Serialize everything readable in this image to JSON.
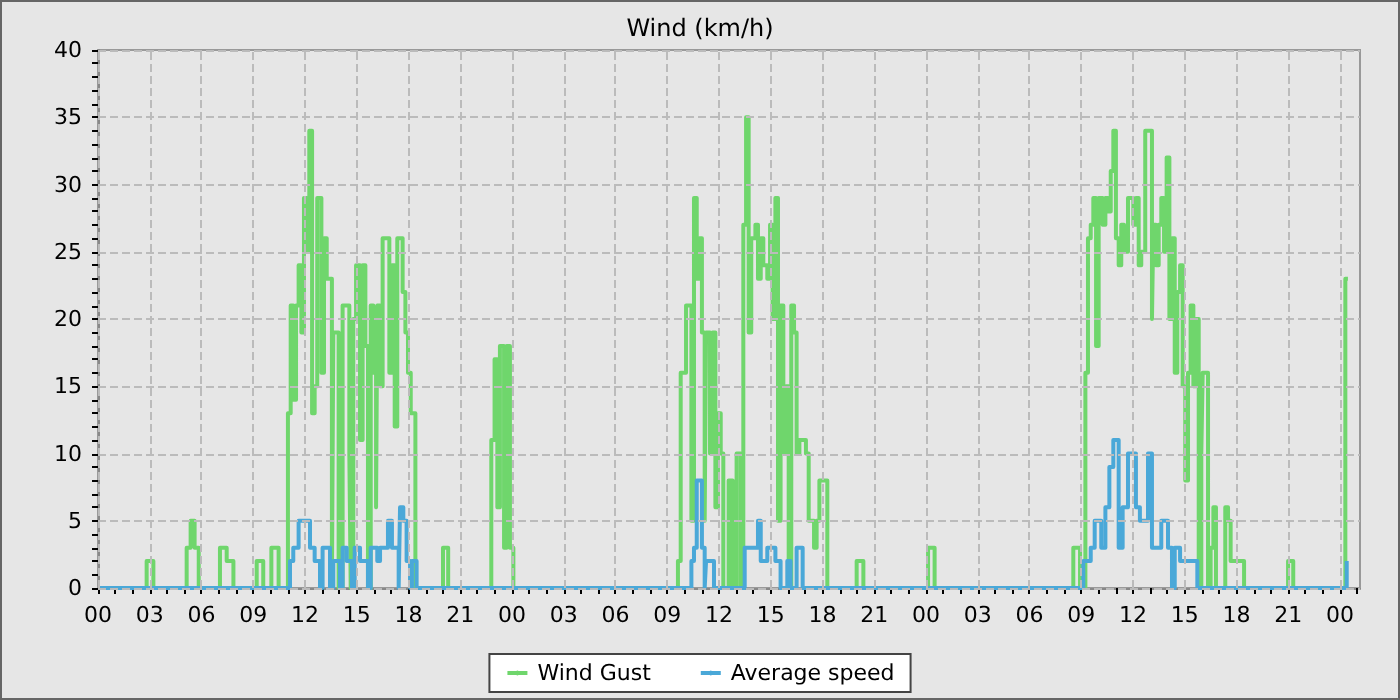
{
  "chart_data": {
    "type": "step",
    "title": "Wind (km/h)",
    "xlim": [
      0,
      73.16
    ],
    "ylim": [
      0,
      40
    ],
    "xticks": [
      {
        "value": 0,
        "label": "00"
      },
      {
        "value": 1,
        "label": null
      },
      {
        "value": 2,
        "label": null
      },
      {
        "value": 3,
        "label": "03"
      },
      {
        "value": 4,
        "label": null
      },
      {
        "value": 5,
        "label": null
      },
      {
        "value": 6,
        "label": "06"
      },
      {
        "value": 7,
        "label": null
      },
      {
        "value": 8,
        "label": null
      },
      {
        "value": 9,
        "label": "09"
      },
      {
        "value": 10,
        "label": null
      },
      {
        "value": 11,
        "label": null
      },
      {
        "value": 12,
        "label": "12"
      },
      {
        "value": 13,
        "label": null
      },
      {
        "value": 14,
        "label": null
      },
      {
        "value": 15,
        "label": "15"
      },
      {
        "value": 16,
        "label": null
      },
      {
        "value": 17,
        "label": null
      },
      {
        "value": 18,
        "label": "18"
      },
      {
        "value": 19,
        "label": null
      },
      {
        "value": 20,
        "label": null
      },
      {
        "value": 21,
        "label": "21"
      },
      {
        "value": 22,
        "label": null
      },
      {
        "value": 23,
        "label": null
      },
      {
        "value": 24,
        "label": "00"
      },
      {
        "value": 25,
        "label": null
      },
      {
        "value": 26,
        "label": null
      },
      {
        "value": 27,
        "label": "03"
      },
      {
        "value": 28,
        "label": null
      },
      {
        "value": 29,
        "label": null
      },
      {
        "value": 30,
        "label": "06"
      },
      {
        "value": 31,
        "label": null
      },
      {
        "value": 32,
        "label": null
      },
      {
        "value": 33,
        "label": "09"
      },
      {
        "value": 34,
        "label": null
      },
      {
        "value": 35,
        "label": null
      },
      {
        "value": 36,
        "label": "12"
      },
      {
        "value": 37,
        "label": null
      },
      {
        "value": 38,
        "label": null
      },
      {
        "value": 39,
        "label": "15"
      },
      {
        "value": 40,
        "label": null
      },
      {
        "value": 41,
        "label": null
      },
      {
        "value": 42,
        "label": "18"
      },
      {
        "value": 43,
        "label": null
      },
      {
        "value": 44,
        "label": null
      },
      {
        "value": 45,
        "label": "21"
      },
      {
        "value": 46,
        "label": null
      },
      {
        "value": 47,
        "label": null
      },
      {
        "value": 48,
        "label": "00"
      },
      {
        "value": 49,
        "label": null
      },
      {
        "value": 50,
        "label": null
      },
      {
        "value": 51,
        "label": "03"
      },
      {
        "value": 52,
        "label": null
      },
      {
        "value": 53,
        "label": null
      },
      {
        "value": 54,
        "label": "06"
      },
      {
        "value": 55,
        "label": null
      },
      {
        "value": 56,
        "label": null
      },
      {
        "value": 57,
        "label": "09"
      },
      {
        "value": 58,
        "label": null
      },
      {
        "value": 59,
        "label": null
      },
      {
        "value": 60,
        "label": "12"
      },
      {
        "value": 61,
        "label": null
      },
      {
        "value": 62,
        "label": null
      },
      {
        "value": 63,
        "label": "15"
      },
      {
        "value": 64,
        "label": null
      },
      {
        "value": 65,
        "label": null
      },
      {
        "value": 66,
        "label": "18"
      },
      {
        "value": 67,
        "label": null
      },
      {
        "value": 68,
        "label": null
      },
      {
        "value": 69,
        "label": "21"
      },
      {
        "value": 70,
        "label": null
      },
      {
        "value": 71,
        "label": null
      },
      {
        "value": 72,
        "label": "00"
      },
      {
        "value": 73,
        "label": null
      }
    ],
    "yticks": [
      0,
      {
        "value": 1,
        "label": null
      },
      {
        "value": 2,
        "label": null
      },
      {
        "value": 3,
        "label": null
      },
      {
        "value": 4,
        "label": null
      },
      5,
      {
        "value": 6,
        "label": null
      },
      {
        "value": 7,
        "label": null
      },
      {
        "value": 8,
        "label": null
      },
      {
        "value": 9,
        "label": null
      },
      10,
      {
        "value": 11,
        "label": null
      },
      {
        "value": 12,
        "label": null
      },
      {
        "value": 13,
        "label": null
      },
      {
        "value": 14,
        "label": null
      },
      15,
      {
        "value": 16,
        "label": null
      },
      {
        "value": 17,
        "label": null
      },
      {
        "value": 18,
        "label": null
      },
      {
        "value": 19,
        "label": null
      },
      20,
      {
        "value": 21,
        "label": null
      },
      {
        "value": 22,
        "label": null
      },
      {
        "value": 23,
        "label": null
      },
      {
        "value": 24,
        "label": null
      },
      25,
      {
        "value": 26,
        "label": null
      },
      {
        "value": 27,
        "label": null
      },
      {
        "value": 28,
        "label": null
      },
      {
        "value": 29,
        "label": null
      },
      30,
      {
        "value": 31,
        "label": null
      },
      {
        "value": 32,
        "label": null
      },
      {
        "value": 33,
        "label": null
      },
      {
        "value": 34,
        "label": null
      },
      35,
      {
        "value": 36,
        "label": null
      },
      {
        "value": 37,
        "label": null
      },
      {
        "value": 38,
        "label": null
      },
      {
        "value": 39,
        "label": null
      },
      40
    ],
    "grid": true,
    "legend": "bottom",
    "line_style": "solid",
    "series": [
      {
        "name": "Wind Gust",
        "color": "#6fd66c",
        "x": [
          0,
          2.82,
          3.21,
          5.14,
          5.37,
          5.6,
          5.84,
          7.07,
          7.46,
          7.85,
          9.2,
          9.58,
          10.05,
          10.47,
          11.01,
          11.17,
          11.32,
          11.48,
          11.63,
          11.79,
          11.94,
          12.1,
          12.25,
          12.41,
          12.56,
          12.71,
          12.95,
          13.1,
          13.26,
          13.41,
          13.56,
          13.64,
          13.95,
          14.18,
          14.57,
          14.65,
          14.8,
          14.96,
          15.19,
          15.34,
          15.5,
          15.65,
          15.81,
          15.96,
          16.12,
          16.19,
          16.35,
          16.5,
          16.89,
          17.04,
          17.2,
          17.35,
          17.66,
          17.82,
          17.97,
          18.13,
          18.4,
          20.0,
          20.3,
          22.8,
          22.99,
          23.15,
          23.3,
          23.54,
          23.69,
          23.88,
          24.08,
          33.62,
          33.78,
          34.09,
          34.4,
          34.55,
          34.71,
          34.86,
          35.01,
          35.17,
          35.25,
          35.48,
          35.63,
          35.79,
          35.94,
          36.1,
          36.25,
          36.56,
          36.79,
          37.02,
          37.26,
          37.41,
          37.57,
          37.72,
          37.87,
          38.11,
          38.26,
          38.42,
          38.57,
          38.8,
          38.96,
          39.11,
          39.27,
          39.42,
          39.57,
          39.73,
          39.88,
          40.04,
          40.19,
          40.35,
          40.5,
          40.66,
          41.04,
          41.2,
          41.51,
          41.66,
          41.82,
          42.28,
          43.98,
          44.37,
          48.12,
          48.5,
          56.54,
          56.93,
          57.24,
          57.39,
          57.55,
          57.7,
          57.86,
          58.01,
          58.24,
          58.4,
          58.55,
          58.71,
          58.86,
          59.01,
          59.17,
          59.32,
          59.48,
          59.71,
          60.02,
          60.17,
          60.33,
          60.48,
          60.71,
          61.1,
          61.18,
          61.33,
          61.49,
          61.64,
          61.8,
          61.95,
          62.11,
          62.26,
          62.42,
          62.57,
          62.73,
          62.88,
          63.03,
          63.19,
          63.34,
          63.5,
          63.65,
          63.81,
          63.96,
          64.04,
          64.35,
          64.5,
          64.66,
          64.81,
          65.35,
          65.51,
          65.66,
          66.44,
          68.99,
          69.29,
          72.31,
          72.46
        ],
        "values": [
          0,
          2,
          0,
          3,
          5,
          3,
          0,
          3,
          2,
          0,
          2,
          0,
          3,
          0,
          13,
          21,
          14,
          21,
          24,
          19,
          29,
          25,
          34,
          13,
          15,
          29,
          16,
          26,
          23,
          23,
          0,
          19,
          0,
          21,
          10,
          0,
          20,
          24,
          11,
          24,
          18,
          0,
          21,
          16,
          6,
          21,
          15,
          26,
          16,
          24,
          12,
          26,
          22,
          19,
          16,
          13,
          0,
          3,
          0,
          11,
          17,
          6,
          18,
          3,
          18,
          3,
          0,
          2,
          16,
          21,
          5,
          29,
          23,
          26,
          19,
          5,
          19,
          10,
          19,
          6,
          13,
          10,
          0,
          8,
          0,
          10,
          0,
          27,
          35,
          19,
          26,
          27,
          23,
          26,
          24,
          23,
          27,
          20,
          29,
          5,
          21,
          10,
          15,
          0,
          21,
          19,
          10,
          11,
          10,
          5,
          3,
          5,
          8,
          0,
          2,
          0,
          3,
          0,
          3,
          0,
          16,
          26,
          27,
          29,
          18,
          29,
          27,
          29,
          28,
          31,
          34,
          26,
          24,
          27,
          25,
          29,
          27,
          29,
          24,
          25,
          34,
          20,
          27,
          24,
          27,
          29,
          25,
          32,
          20,
          26,
          16,
          22,
          24,
          15,
          8,
          16,
          21,
          15,
          20,
          0,
          10,
          16,
          0,
          3,
          6,
          0,
          6,
          5,
          2,
          0,
          2,
          0,
          23,
          23
        ]
      },
      {
        "name": "Average speed",
        "color": "#4aa8d8",
        "x": [
          0,
          11.13,
          11.32,
          11.63,
          12.29,
          12.56,
          12.87,
          13.02,
          13.45,
          13.64,
          14.03,
          14.18,
          14.42,
          14.72,
          14.88,
          15.19,
          15.65,
          15.81,
          16.19,
          16.35,
          16.81,
          17.04,
          17.43,
          17.51,
          17.7,
          17.89,
          18.09,
          18.2,
          18.47,
          34.4,
          34.55,
          34.71,
          35.01,
          35.17,
          35.25,
          35.71,
          35.94,
          37.49,
          38.26,
          38.42,
          38.8,
          39.27,
          39.57,
          39.96,
          40.15,
          40.5,
          40.85,
          57.12,
          57.55,
          57.78,
          58.16,
          58.4,
          58.63,
          58.86,
          59.17,
          59.4,
          59.71,
          60.17,
          60.4,
          60.87,
          61.1,
          61.64,
          62.03,
          62.26,
          62.42,
          62.73,
          63.73,
          72.39,
          72.46
        ],
        "values": [
          0,
          2,
          3,
          5,
          3,
          2,
          0,
          3,
          0,
          2,
          0,
          3,
          2,
          0,
          3,
          2,
          0,
          3,
          2,
          3,
          5,
          3,
          0,
          6,
          5,
          2,
          0,
          2,
          0,
          2,
          3,
          8,
          3,
          0,
          2,
          0,
          0,
          3,
          5,
          2,
          3,
          2,
          0,
          2,
          0,
          3,
          0,
          2,
          3,
          5,
          3,
          6,
          9,
          11,
          3,
          6,
          10,
          6,
          5,
          10,
          3,
          5,
          3,
          0,
          3,
          2,
          0,
          2,
          2
        ]
      }
    ]
  }
}
